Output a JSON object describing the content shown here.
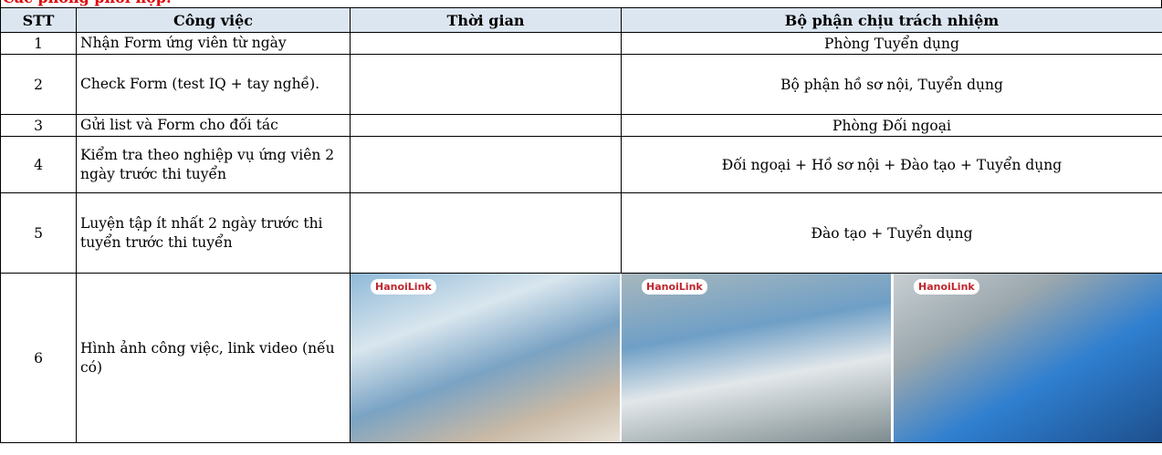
{
  "title": "Các phòng phối hợp:",
  "table": {
    "headers": [
      "STT",
      "Công việc",
      "Thời gian",
      "Bộ phận chịu trách nhiệm"
    ],
    "rows": [
      {
        "stt": "1",
        "task": "Nhận Form ứng viên từ ngày",
        "department": "Phòng Tuyển dụng"
      },
      {
        "stt": "2",
        "task": "Check Form (test IQ + tay nghề).",
        "department": "Bộ phận hồ sơ nội, Tuyển dụng"
      },
      {
        "stt": "3",
        "task": "Gửi list và Form cho đối tác",
        "department": "Phòng Đối ngoại"
      },
      {
        "stt": "4",
        "task": "Kiểm tra theo nghiệp vụ ứng viên 2 ngày trước thi tuyển",
        "department": "Đối ngoại + Hồ sơ nội + Đào tạo + Tuyển dụng"
      },
      {
        "stt": "5",
        "task": "Luyện tập ít nhất 2 ngày trước thi tuyển trước thi tuyển",
        "department": "Đào tạo + Tuyển dụng"
      },
      {
        "stt": "6",
        "task": "Hình ảnh công việc, link video (nếu có)"
      }
    ]
  },
  "photo_logo": "HanoiLink"
}
